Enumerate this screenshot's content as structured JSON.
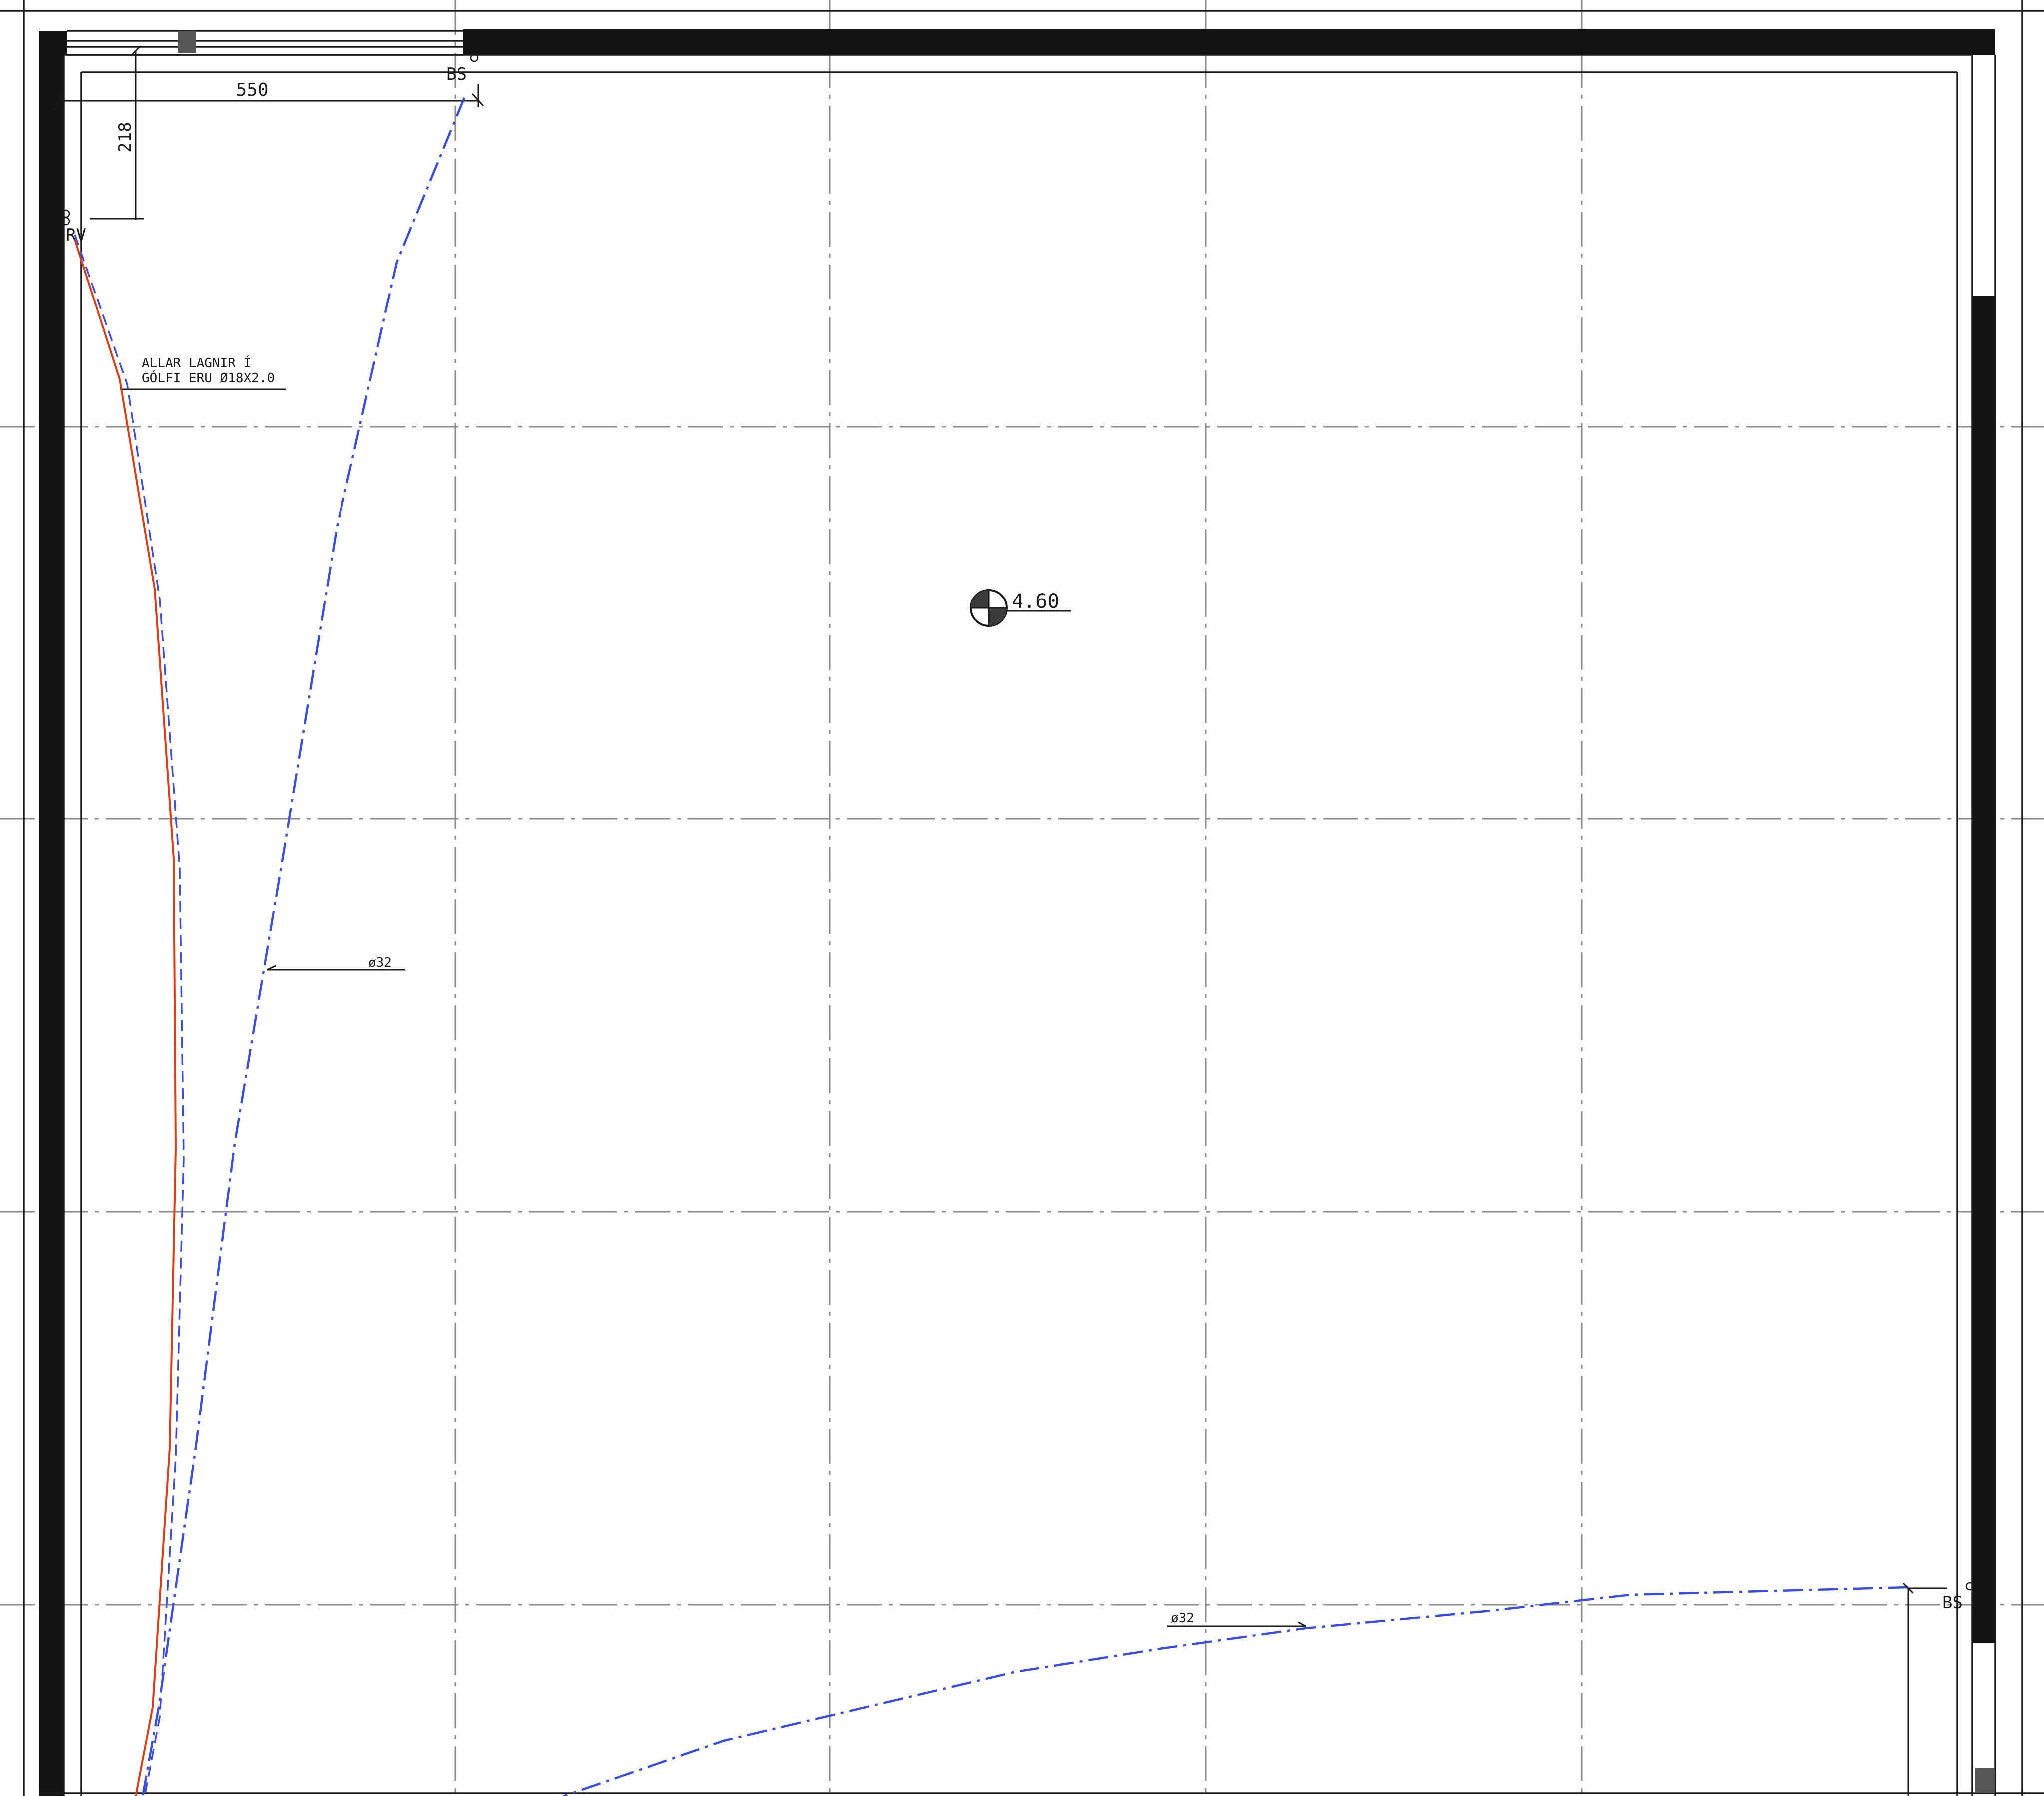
{
  "labels": {
    "dim_horizontal": "550",
    "dim_vertical": "218",
    "bs_top": "BS",
    "rv": "RV",
    "note_line1": "ALLAR LAGNIR Í",
    "note_line2": "GÓLFI ERU Ø18X2.0",
    "pipe_label_1": "ø32",
    "pipe_label_2": "ø32",
    "elevation": "4.60",
    "bs_right": "BS"
  },
  "colors": {
    "wall": "#141414",
    "grid": "#8a8a8a",
    "supply_pipe": "#3a4fd6",
    "return_pipe": "#d8401c",
    "text": "#1a1a1a"
  },
  "symbols": {
    "elevation_marker": "elevation-marker-icon",
    "valve_top": "valve-circle-icon",
    "valve_right": "valve-circle-icon",
    "valve_left": "valve-double-circle-icon"
  }
}
